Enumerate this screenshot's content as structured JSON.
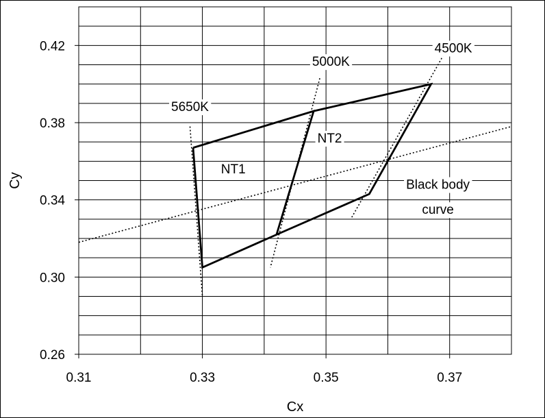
{
  "chart_data": {
    "type": "line",
    "title": "",
    "xlabel": "Cx",
    "ylabel": "Cy",
    "xlim": [
      0.31,
      0.38
    ],
    "ylim": [
      0.26,
      0.44
    ],
    "x_ticks": [
      {
        "value": 0.31,
        "label": "0.31"
      },
      {
        "value": 0.33,
        "label": "0.33"
      },
      {
        "value": 0.35,
        "label": "0.35"
      },
      {
        "value": 0.37,
        "label": "0.37"
      }
    ],
    "y_ticks": [
      {
        "value": 0.26,
        "label": "0.26"
      },
      {
        "value": 0.3,
        "label": "0.30"
      },
      {
        "value": 0.34,
        "label": "0.34"
      },
      {
        "value": 0.38,
        "label": "0.38"
      },
      {
        "value": 0.42,
        "label": "0.42"
      }
    ],
    "grid": true,
    "grid_x_step": 0.01,
    "grid_y_step": 0.01,
    "series": [
      {
        "id": "nt1",
        "style": "solid",
        "points": [
          [
            0.3285,
            0.367
          ],
          [
            0.348,
            0.386
          ],
          [
            0.342,
            0.322
          ],
          [
            0.33,
            0.305
          ],
          [
            0.3285,
            0.367
          ]
        ]
      },
      {
        "id": "nt2",
        "style": "solid",
        "points": [
          [
            0.348,
            0.386
          ],
          [
            0.367,
            0.4
          ],
          [
            0.357,
            0.343
          ],
          [
            0.342,
            0.322
          ]
        ]
      },
      {
        "id": "black-body",
        "style": "dotted",
        "points": [
          [
            0.31,
            0.318
          ],
          [
            0.38,
            0.378
          ]
        ]
      },
      {
        "id": "isotherm-5650",
        "style": "dotted",
        "points": [
          [
            0.328,
            0.378
          ],
          [
            0.33,
            0.29
          ]
        ]
      },
      {
        "id": "isotherm-5000",
        "style": "dotted",
        "points": [
          [
            0.349,
            0.403
          ],
          [
            0.341,
            0.305
          ]
        ]
      },
      {
        "id": "isotherm-4500",
        "style": "dotted",
        "points": [
          [
            0.369,
            0.415
          ],
          [
            0.354,
            0.33
          ]
        ]
      }
    ],
    "annotations": [
      {
        "id": "label-5650k",
        "text": "5650K",
        "x": 0.328,
        "y": 0.3878
      },
      {
        "id": "label-5000k",
        "text": "5000K",
        "x": 0.3508,
        "y": 0.4112
      },
      {
        "id": "label-4500k",
        "text": "4500K",
        "x": 0.3706,
        "y": 0.4182
      },
      {
        "id": "label-nt1",
        "text": "NT1",
        "x": 0.335,
        "y": 0.3555
      },
      {
        "id": "label-nt2",
        "text": "NT2",
        "x": 0.3506,
        "y": 0.3715
      },
      {
        "id": "label-black-body",
        "text": "Black body",
        "x": 0.3681,
        "y": 0.3475
      },
      {
        "id": "label-curve",
        "text": "curve",
        "x": 0.3681,
        "y": 0.3345
      }
    ]
  }
}
